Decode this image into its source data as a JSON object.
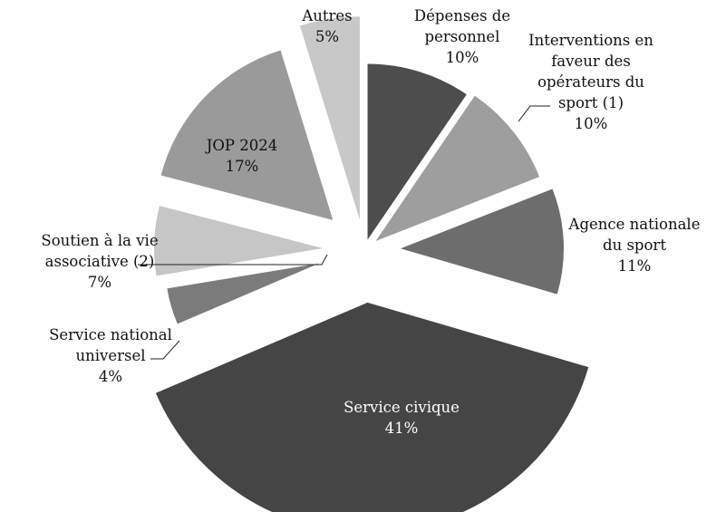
{
  "chart_data": {
    "type": "pie",
    "title": "",
    "labels": [
      "Dépenses de personnel",
      "Interventions en faveur des opérateurs du sport (1)",
      "Agence nationale du sport",
      "Service civique",
      "Service national universel",
      "Soutien à la vie associative (2)",
      "JOP 2024",
      "Autres"
    ],
    "label_lines": [
      [
        "Dépenses de",
        "personnel"
      ],
      [
        "Interventions en",
        "faveur des",
        "opérateurs du",
        "sport (1)"
      ],
      [
        "Agence nationale",
        "du sport"
      ],
      [
        "Service civique"
      ],
      [
        "Service national",
        "universel"
      ],
      [
        "Soutien à la vie",
        "associative (2)"
      ],
      [
        "JOP 2024"
      ],
      [
        "Autres"
      ]
    ],
    "values": [
      10,
      10,
      11,
      41,
      4,
      7,
      17,
      5
    ],
    "value_labels": [
      "10%",
      "10%",
      "11%",
      "41%",
      "4%",
      "7%",
      "17%",
      "5%"
    ],
    "colors": [
      "#4d4d4d",
      "#9e9e9e",
      "#6d6d6d",
      "#454545",
      "#7b7b7b",
      "#c6c6c6",
      "#9a9a9a",
      "#c8c8c8"
    ],
    "exploded": true,
    "legend": "none"
  }
}
